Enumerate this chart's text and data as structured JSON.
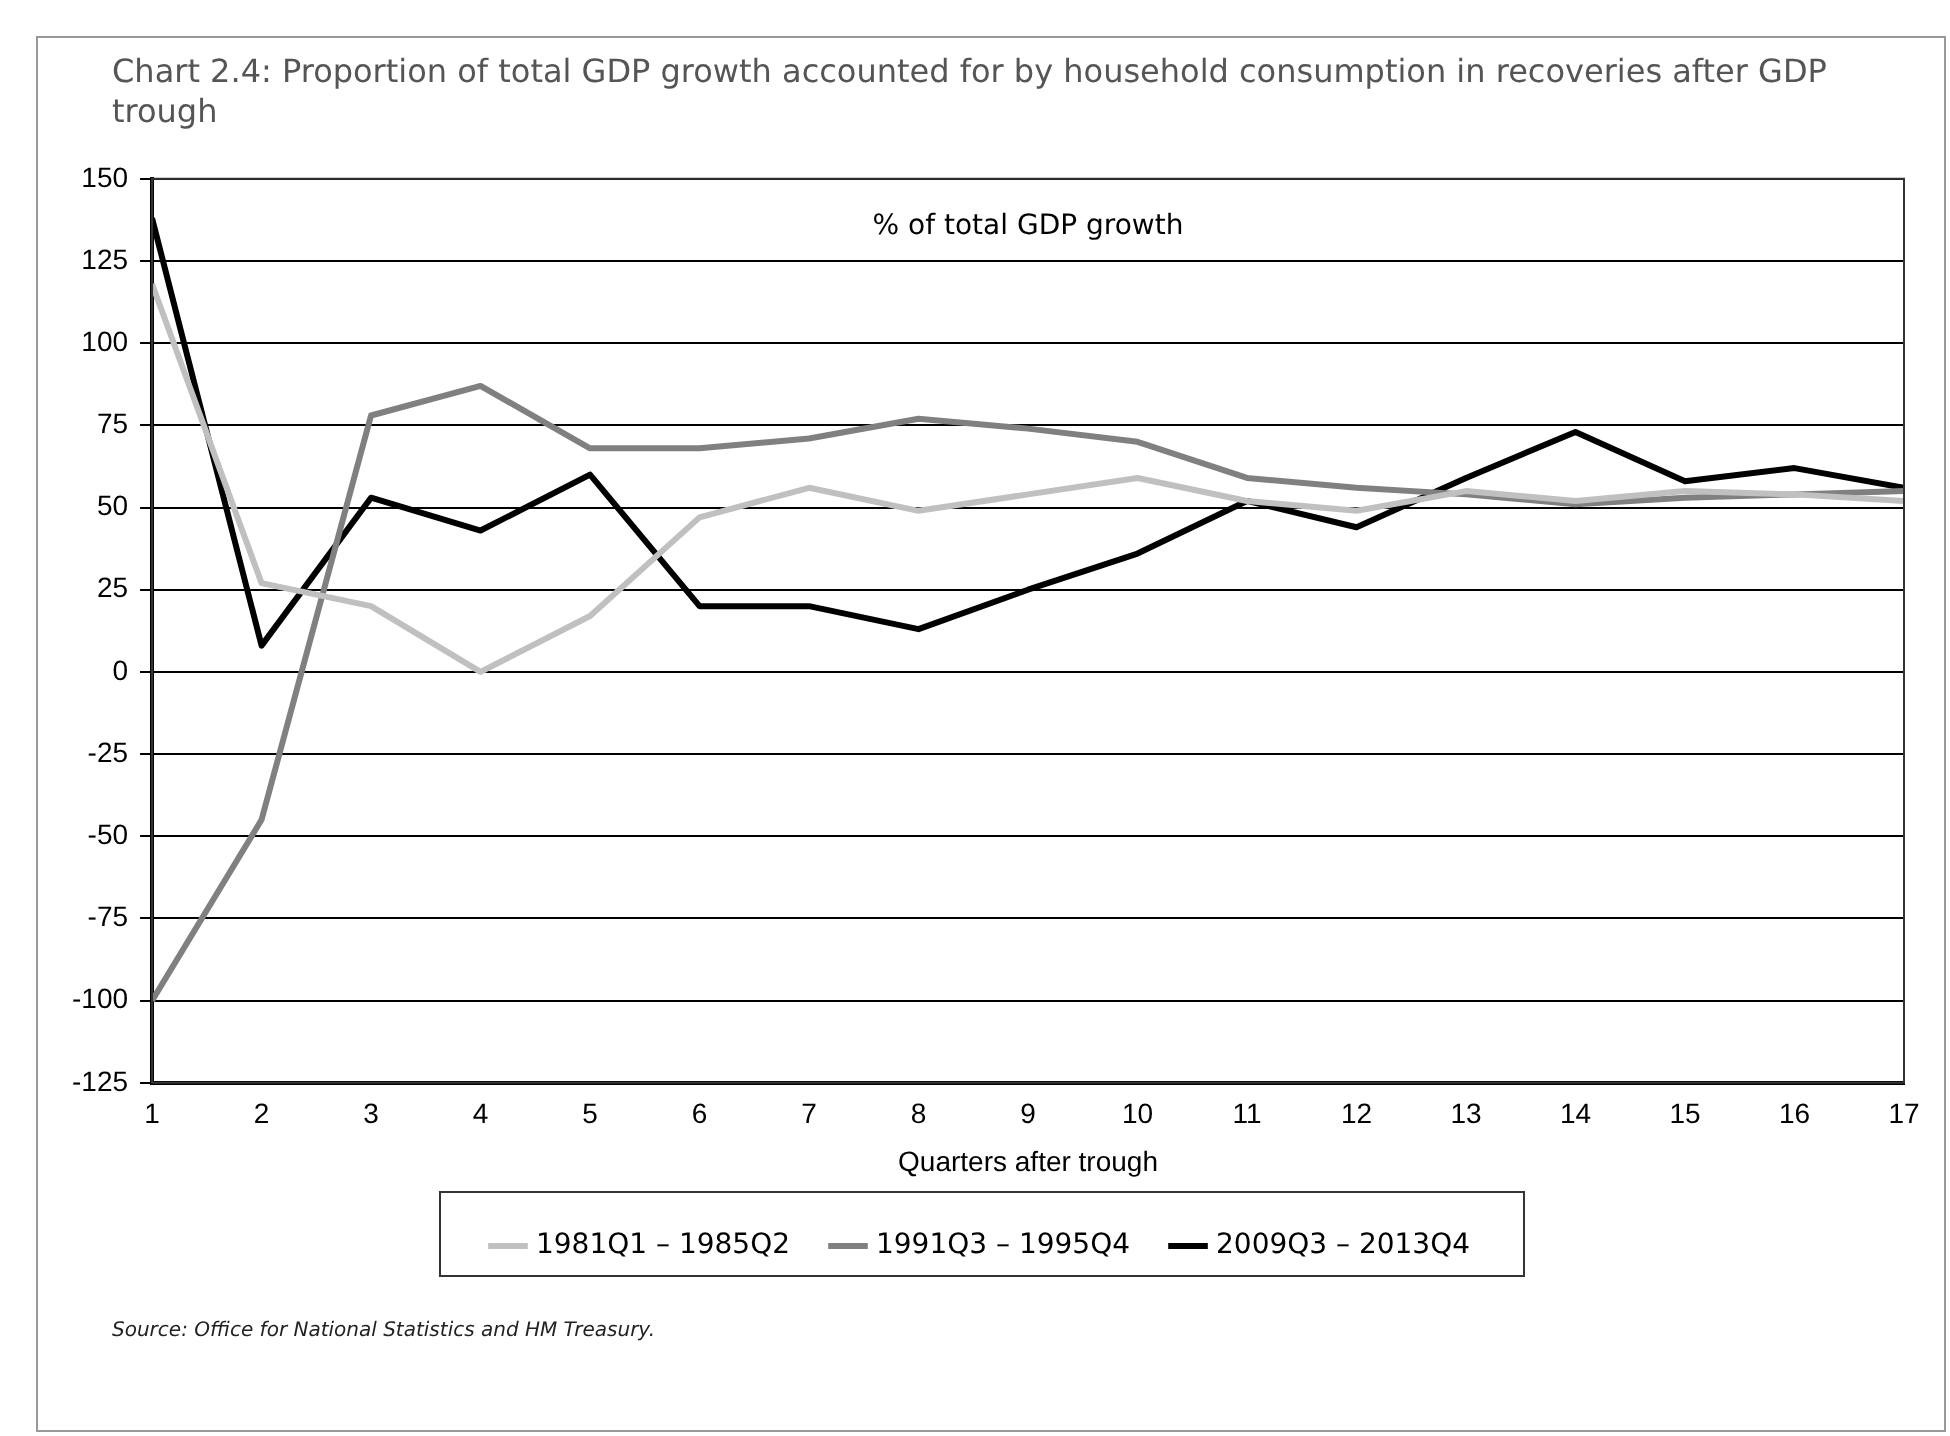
{
  "chart_data": {
    "type": "line",
    "title": "Chart 2.4: Proportion of total GDP growth accounted for by household consumption in recoveries after GDP trough",
    "xlabel": "Quarters after trough",
    "annotations": [
      "% of total GDP growth",
      "Source: Office for National Statistics and HM Treasury."
    ],
    "x": [
      1,
      2,
      3,
      4,
      5,
      6,
      7,
      8,
      9,
      10,
      11,
      12,
      13,
      14,
      15,
      16,
      17
    ],
    "series": [
      {
        "name": "1981Q1 – 1985Q2",
        "color": "#c0c0c0",
        "values": [
          118,
          27,
          20,
          0,
          17,
          47,
          56,
          49,
          54,
          59,
          52,
          49,
          55,
          52,
          55,
          54,
          52
        ]
      },
      {
        "name": "1991Q3 – 1995Q4",
        "color": "#808080",
        "values": [
          -100,
          -45,
          78,
          87,
          68,
          68,
          71,
          77,
          74,
          70,
          59,
          56,
          54,
          51,
          53,
          54,
          55
        ]
      },
      {
        "name": "2009Q3 – 2013Q4",
        "color": "#000000",
        "values": [
          138,
          8,
          53,
          43,
          60,
          20,
          20,
          13,
          25,
          36,
          52,
          44,
          59,
          73,
          58,
          62,
          56
        ]
      }
    ],
    "xlim": [
      1,
      17
    ],
    "xticks": [
      1,
      2,
      3,
      4,
      5,
      6,
      7,
      8,
      9,
      10,
      11,
      12,
      13,
      14,
      15,
      16,
      17
    ],
    "ylim": [
      -125,
      150
    ],
    "yticks": [
      -125,
      -100,
      -75,
      -50,
      -25,
      0,
      25,
      50,
      75,
      100,
      125,
      150
    ],
    "grid": "y",
    "legend": "bottom",
    "marker": "none",
    "line_style": "solid"
  }
}
